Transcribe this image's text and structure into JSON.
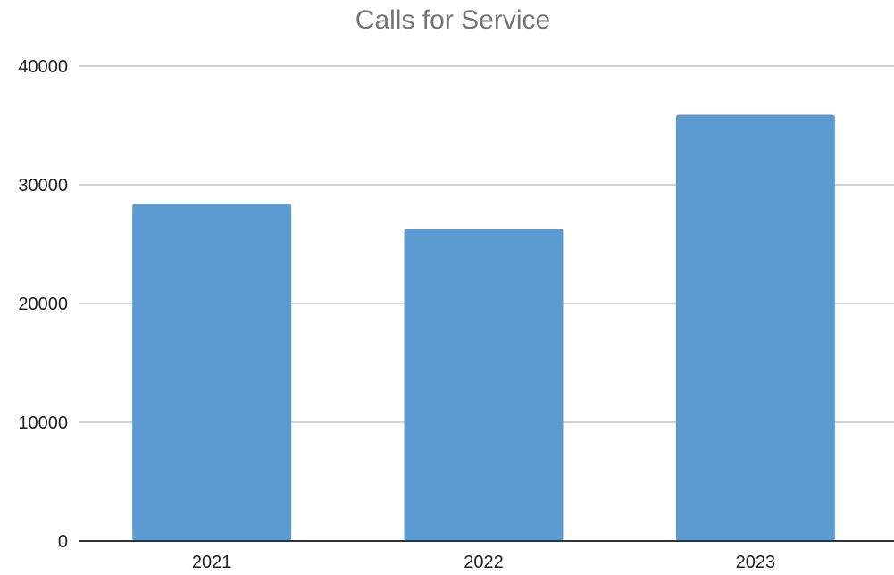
{
  "chart_data": {
    "type": "bar",
    "title": "Calls for Service",
    "xlabel": "",
    "ylabel": "",
    "categories": [
      "2021",
      "2022",
      "2023"
    ],
    "values": [
      28400,
      26300,
      35900
    ],
    "ylim": [
      0,
      40000
    ],
    "yticks": [
      0,
      10000,
      20000,
      30000,
      40000
    ],
    "ytick_labels": [
      "0",
      "10000",
      "20000",
      "30000",
      "40000"
    ],
    "grid": true,
    "legend": "none",
    "bar_color": "#5b9bd1"
  }
}
